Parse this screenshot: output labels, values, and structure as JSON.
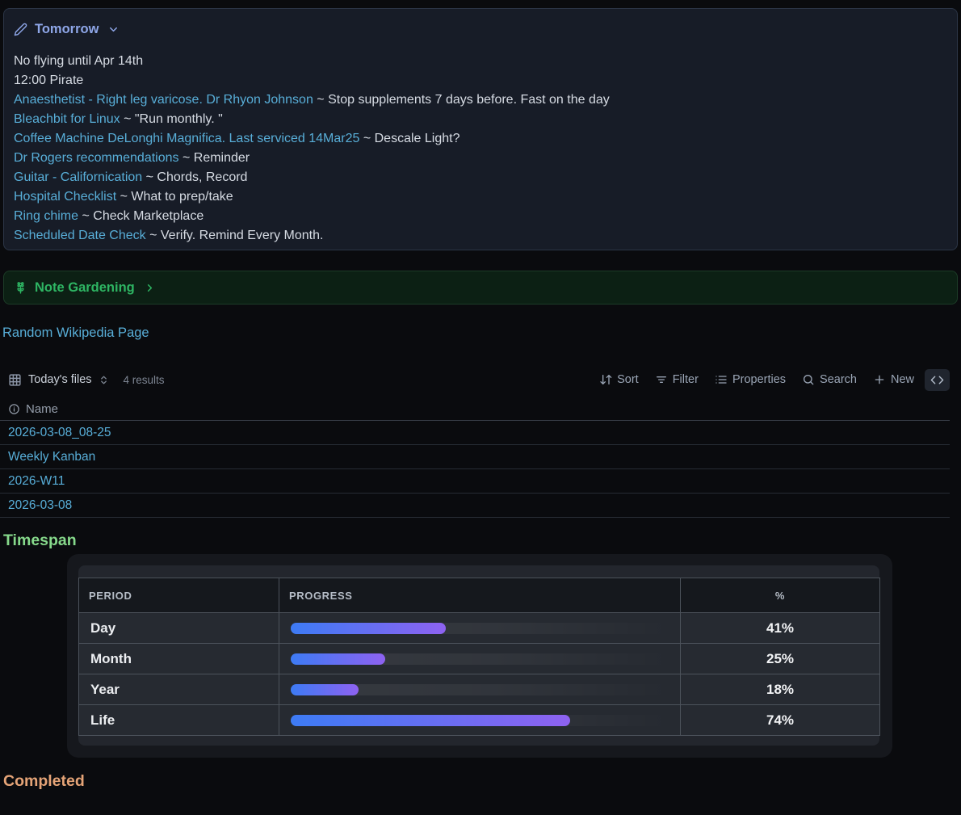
{
  "tomorrow": {
    "title": "Tomorrow",
    "lines": [
      {
        "text": "No flying until Apr 14th"
      },
      {
        "text": "12:00 Pirate"
      },
      {
        "link": "Anaesthetist - Right leg varicose. Dr Rhyon Johnson",
        "text": " ~ Stop supplements 7 days before. Fast on the day"
      },
      {
        "link": "Bleachbit for Linux",
        "text": " ~ \"Run monthly. \""
      },
      {
        "link": "Coffee Machine DeLonghi Magnifica. Last serviced 14Mar25",
        "text": " ~ Descale Light?"
      },
      {
        "link": "Dr Rogers recommendations",
        "text": " ~ Reminder"
      },
      {
        "link": "Guitar - Californication",
        "text": " ~ Chords, Record"
      },
      {
        "link": "Hospital Checklist",
        "text": " ~ What to prep/take"
      },
      {
        "link": "Ring chime",
        "text": " ~ Check Marketplace"
      },
      {
        "link": "Scheduled Date Check",
        "text": " ~ Verify. Remind Every Month."
      }
    ]
  },
  "note_gardening": {
    "title": "Note Gardening"
  },
  "random_link": "Random Wikipedia Page",
  "files": {
    "view_label": "Today's files",
    "results": "4 results",
    "toolbar": {
      "sort": "Sort",
      "filter": "Filter",
      "properties": "Properties",
      "search": "Search",
      "new": "New"
    },
    "column_header": "Name",
    "rows": [
      "2026-03-08_08-25",
      "Weekly Kanban",
      "2026-W11",
      "2026-03-08"
    ]
  },
  "timespan": {
    "heading": "Timespan",
    "columns": [
      "PERIOD",
      "PROGRESS",
      "%"
    ],
    "rows": [
      {
        "period": "Day",
        "percent": 41,
        "percent_label": "41%"
      },
      {
        "period": "Month",
        "percent": 25,
        "percent_label": "25%"
      },
      {
        "period": "Year",
        "percent": 18,
        "percent_label": "18%"
      },
      {
        "period": "Life",
        "percent": 74,
        "percent_label": "74%"
      }
    ]
  },
  "completed": {
    "heading": "Completed"
  },
  "colors": {
    "link": "#58aed8",
    "callout_blue_title": "#8fa7e9",
    "callout_green_title": "#2eb563",
    "heading_green": "#86d98b",
    "heading_orange": "#e5a477",
    "bar_gradient_start": "#3d7bf4",
    "bar_gradient_end": "#8e62f1"
  }
}
